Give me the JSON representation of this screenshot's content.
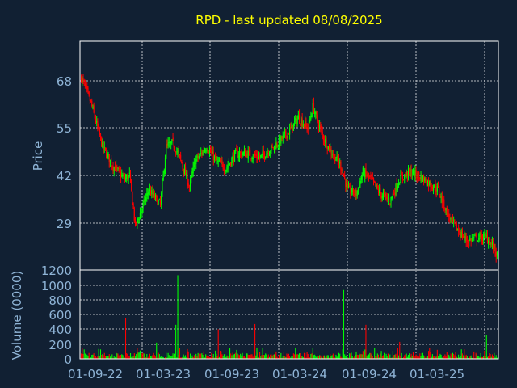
{
  "chart_data": {
    "type": "candlestick",
    "title": "RPD - last updated 08/08/2025",
    "colors": {
      "up": "#00ff00",
      "down": "#ff0000",
      "text": "#8fb4d6",
      "title": "#ffff00",
      "background": "#112033"
    },
    "grid": true,
    "price_panel": {
      "ylabel": "Price",
      "yticks": [
        "68",
        "55",
        "42",
        "29"
      ],
      "ylim": [
        16,
        79
      ]
    },
    "volume_panel": {
      "ylabel": "Volume (0000)",
      "yticks": [
        "1200",
        "1000",
        "800",
        "600",
        "400",
        "200",
        "0"
      ],
      "ylim": [
        0,
        1200
      ]
    },
    "x_tick_labels": [
      "01-09-22",
      "01-03-23",
      "01-09-23",
      "01-03-24",
      "01-09-24",
      "01-03-25"
    ],
    "price_keypoints": [
      [
        0,
        69
      ],
      [
        10,
        62
      ],
      [
        22,
        50
      ],
      [
        32,
        45
      ],
      [
        45,
        41
      ],
      [
        50,
        42
      ],
      [
        56,
        28
      ],
      [
        70,
        38
      ],
      [
        82,
        34
      ],
      [
        88,
        50
      ],
      [
        95,
        51
      ],
      [
        102,
        47
      ],
      [
        112,
        39
      ],
      [
        118,
        46
      ],
      [
        130,
        50
      ],
      [
        140,
        46
      ],
      [
        150,
        44
      ],
      [
        160,
        48
      ],
      [
        172,
        48
      ],
      [
        185,
        47
      ],
      [
        200,
        50
      ],
      [
        215,
        54
      ],
      [
        225,
        58
      ],
      [
        235,
        55
      ],
      [
        240,
        61
      ],
      [
        250,
        53
      ],
      [
        258,
        49
      ],
      [
        266,
        46
      ],
      [
        270,
        44
      ],
      [
        276,
        38
      ],
      [
        285,
        37
      ],
      [
        292,
        43
      ],
      [
        300,
        41
      ],
      [
        310,
        37
      ],
      [
        320,
        35
      ],
      [
        330,
        41
      ],
      [
        340,
        43
      ],
      [
        350,
        42
      ],
      [
        360,
        40
      ],
      [
        370,
        38
      ],
      [
        380,
        31
      ],
      [
        390,
        27
      ],
      [
        400,
        24
      ],
      [
        412,
        25
      ],
      [
        420,
        25
      ],
      [
        428,
        22
      ],
      [
        432,
        19
      ]
    ],
    "gaps": [
      [
        46,
        54
      ],
      [
        273,
        276
      ]
    ],
    "volume_typical": [
      10,
      100
    ],
    "volume_spikes": [
      [
        46,
        550
      ],
      [
        78,
        220
      ],
      [
        98,
        460
      ],
      [
        100,
        1130
      ],
      [
        142,
        400
      ],
      [
        180,
        470
      ],
      [
        272,
        930
      ],
      [
        295,
        460
      ],
      [
        330,
        230
      ],
      [
        420,
        320
      ]
    ]
  }
}
